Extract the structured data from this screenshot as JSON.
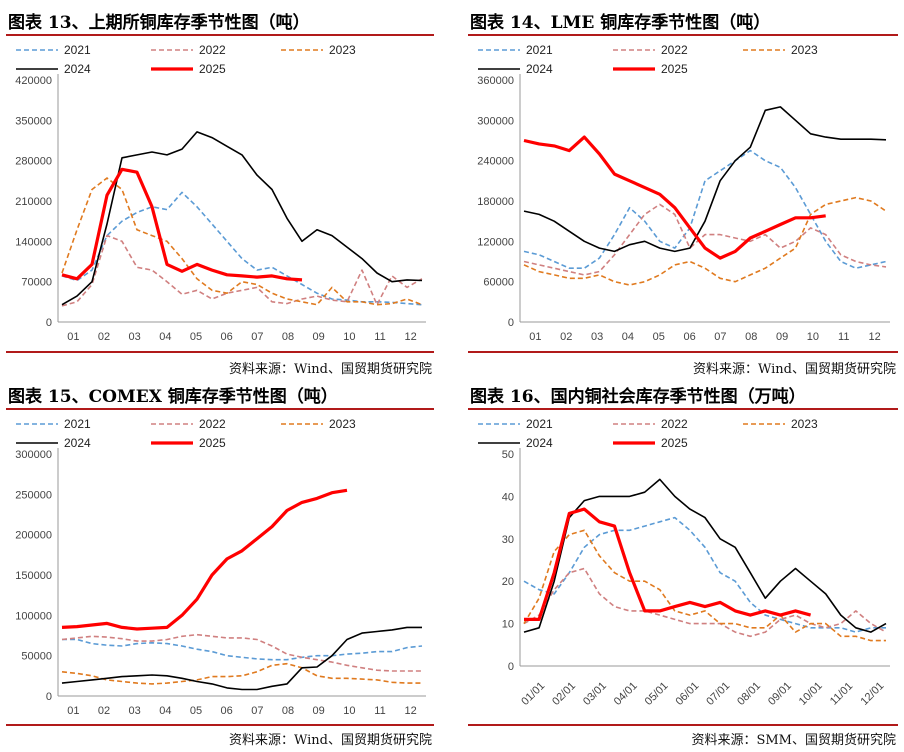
{
  "page": {
    "source_wind": "资料来源：Wind、国贸期货研究院",
    "source_smm": "资料来源：SMM、国贸期货研究院"
  },
  "colors": {
    "2021": "#5b9bd5",
    "2022": "#d08080",
    "2023": "#e07a1f",
    "2024": "#000000",
    "2025": "#ff0000",
    "title_rule": "#b11a1a"
  },
  "chart_data": [
    {
      "id": "shfe",
      "type": "line",
      "title": "图表 13、上期所铜库存季节性图（吨）",
      "source_key": "source_wind",
      "x_labels": [
        "01",
        "02",
        "03",
        "04",
        "05",
        "06",
        "07",
        "08",
        "09",
        "10",
        "11",
        "12"
      ],
      "ylim": [
        0,
        420000
      ],
      "yticks": [
        0,
        70000,
        140000,
        210000,
        280000,
        350000,
        420000
      ],
      "legend_order": [
        "2021",
        "2022",
        "2023",
        "2024",
        "2025"
      ],
      "series": [
        {
          "name": "2021",
          "values": [
            80000,
            72000,
            90000,
            150000,
            175000,
            190000,
            200000,
            195000,
            225000,
            200000,
            170000,
            140000,
            110000,
            90000,
            95000,
            80000,
            65000,
            50000,
            40000,
            38000,
            35000,
            35000,
            34000,
            32000,
            30000
          ]
        },
        {
          "name": "2022",
          "values": [
            28000,
            35000,
            65000,
            150000,
            140000,
            95000,
            90000,
            70000,
            48000,
            55000,
            40000,
            50000,
            55000,
            60000,
            35000,
            32000,
            40000,
            45000,
            38000,
            35000,
            90000,
            30000,
            80000,
            60000,
            75000
          ]
        },
        {
          "name": "2023",
          "values": [
            85000,
            160000,
            230000,
            250000,
            230000,
            160000,
            150000,
            140000,
            110000,
            75000,
            55000,
            50000,
            70000,
            65000,
            50000,
            40000,
            35000,
            30000,
            60000,
            35000,
            35000,
            30000,
            32000,
            40000,
            30000
          ]
        },
        {
          "name": "2024",
          "values": [
            30000,
            45000,
            70000,
            170000,
            285000,
            290000,
            295000,
            290000,
            300000,
            330000,
            320000,
            305000,
            290000,
            255000,
            230000,
            180000,
            140000,
            160000,
            150000,
            130000,
            110000,
            85000,
            70000,
            73000,
            72000
          ]
        },
        {
          "name": "2025",
          "values": [
            82000,
            75000,
            100000,
            220000,
            265000,
            260000,
            200000,
            100000,
            88000,
            100000,
            90000,
            82000,
            80000,
            78000,
            80000,
            75000,
            73000
          ]
        }
      ]
    },
    {
      "id": "lme",
      "type": "line",
      "title": "图表 14、LME 铜库存季节性图（吨）",
      "source_key": "source_wind",
      "x_labels": [
        "01",
        "02",
        "03",
        "04",
        "05",
        "06",
        "07",
        "08",
        "09",
        "10",
        "11",
        "12"
      ],
      "ylim": [
        0,
        360000
      ],
      "yticks": [
        0,
        60000,
        120000,
        180000,
        240000,
        300000,
        360000
      ],
      "legend_order": [
        "2021",
        "2022",
        "2023",
        "2024",
        "2025"
      ],
      "series": [
        {
          "name": "2021",
          "values": [
            105000,
            100000,
            90000,
            80000,
            80000,
            95000,
            130000,
            170000,
            150000,
            120000,
            110000,
            140000,
            210000,
            225000,
            240000,
            255000,
            240000,
            230000,
            200000,
            160000,
            120000,
            90000,
            80000,
            85000,
            90000
          ]
        },
        {
          "name": "2022",
          "values": [
            90000,
            85000,
            80000,
            75000,
            70000,
            75000,
            100000,
            130000,
            160000,
            175000,
            160000,
            110000,
            130000,
            130000,
            125000,
            120000,
            130000,
            110000,
            120000,
            140000,
            130000,
            100000,
            90000,
            85000,
            82000
          ]
        },
        {
          "name": "2023",
          "values": [
            85000,
            75000,
            70000,
            65000,
            65000,
            70000,
            60000,
            55000,
            60000,
            70000,
            85000,
            90000,
            80000,
            65000,
            60000,
            70000,
            80000,
            95000,
            110000,
            160000,
            175000,
            180000,
            185000,
            180000,
            165000
          ]
        },
        {
          "name": "2024",
          "values": [
            165000,
            160000,
            150000,
            135000,
            120000,
            110000,
            105000,
            115000,
            120000,
            110000,
            105000,
            110000,
            150000,
            210000,
            240000,
            260000,
            315000,
            320000,
            300000,
            280000,
            275000,
            272000,
            272000,
            272000,
            271000
          ]
        },
        {
          "name": "2025",
          "values": [
            270000,
            265000,
            262000,
            255000,
            275000,
            250000,
            220000,
            210000,
            200000,
            190000,
            170000,
            140000,
            110000,
            95000,
            105000,
            125000,
            135000,
            145000,
            155000,
            155000,
            158000
          ]
        }
      ]
    },
    {
      "id": "comex",
      "type": "line",
      "title": "图表 15、COMEX 铜库存季节性图（吨）",
      "source_key": "source_wind",
      "x_labels": [
        "01",
        "02",
        "03",
        "04",
        "05",
        "06",
        "07",
        "08",
        "09",
        "10",
        "11",
        "12"
      ],
      "ylim": [
        0,
        300000
      ],
      "yticks": [
        0,
        50000,
        100000,
        150000,
        200000,
        250000,
        300000
      ],
      "legend_order": [
        "2021",
        "2022",
        "2023",
        "2024",
        "2025"
      ],
      "series": [
        {
          "name": "2021",
          "values": [
            70000,
            70000,
            65000,
            63000,
            62000,
            65000,
            66000,
            65000,
            62000,
            58000,
            55000,
            50000,
            48000,
            46000,
            45000,
            45000,
            48000,
            50000,
            50000,
            52000,
            53000,
            55000,
            55000,
            60000,
            62000
          ]
        },
        {
          "name": "2022",
          "values": [
            70000,
            72000,
            74000,
            73000,
            71000,
            68000,
            68000,
            70000,
            74000,
            76000,
            74000,
            72000,
            72000,
            70000,
            62000,
            52000,
            48000,
            45000,
            42000,
            38000,
            35000,
            32000,
            31000,
            31000,
            31000
          ]
        },
        {
          "name": "2023",
          "values": [
            30000,
            28000,
            25000,
            20000,
            18000,
            16000,
            15000,
            16000,
            18000,
            20000,
            24000,
            24000,
            25000,
            30000,
            38000,
            40000,
            35000,
            25000,
            22000,
            22000,
            21000,
            20000,
            17000,
            16000,
            16000
          ]
        },
        {
          "name": "2024",
          "values": [
            16000,
            18000,
            20000,
            22000,
            24000,
            25000,
            26000,
            25000,
            22000,
            18000,
            15000,
            10000,
            8000,
            8000,
            12000,
            15000,
            35000,
            36000,
            50000,
            70000,
            78000,
            80000,
            82000,
            85000,
            85000
          ]
        },
        {
          "name": "2025",
          "values": [
            85000,
            86000,
            88000,
            90000,
            85000,
            83000,
            84000,
            85000,
            100000,
            120000,
            150000,
            170000,
            180000,
            195000,
            210000,
            230000,
            240000,
            245000,
            252000,
            255000
          ]
        }
      ]
    },
    {
      "id": "domestic",
      "type": "line",
      "title": "图表 16、国内铜社会库存季节性图（万吨）",
      "source_key": "source_smm",
      "x_labels": [
        "01/01",
        "02/01",
        "03/01",
        "04/01",
        "05/01",
        "06/01",
        "07/01",
        "08/01",
        "09/01",
        "10/01",
        "11/01",
        "12/01"
      ],
      "ylim": [
        0,
        50
      ],
      "yticks": [
        0,
        10,
        20,
        30,
        40,
        50
      ],
      "legend_order": [
        "2021",
        "2022",
        "2023",
        "2024",
        "2025"
      ],
      "series": [
        {
          "name": "2021",
          "values": [
            20,
            18,
            17,
            22,
            28,
            31,
            32,
            32,
            33,
            34,
            35,
            32,
            28,
            22,
            20,
            15,
            12,
            11,
            10,
            9,
            9,
            9,
            8,
            9,
            9
          ]
        },
        {
          "name": "2022",
          "values": [
            10,
            12,
            18,
            22,
            23,
            17,
            14,
            13,
            13,
            12,
            11,
            10,
            10,
            10,
            8,
            7,
            8,
            11,
            12,
            10,
            9,
            10,
            13,
            10,
            8
          ]
        },
        {
          "name": "2023",
          "values": [
            10,
            16,
            27,
            31,
            32,
            26,
            22,
            20,
            20,
            18,
            13,
            12,
            13,
            10,
            10,
            9,
            9,
            12,
            8,
            10,
            10,
            7,
            7,
            6,
            6
          ]
        },
        {
          "name": "2024",
          "values": [
            8,
            9,
            20,
            35,
            39,
            40,
            40,
            40,
            41,
            44,
            40,
            37,
            35,
            30,
            28,
            22,
            16,
            20,
            23,
            20,
            17,
            12,
            9,
            8,
            10
          ]
        },
        {
          "name": "2025",
          "values": [
            11,
            11,
            22,
            36,
            37,
            34,
            33,
            22,
            13,
            13,
            14,
            15,
            14,
            15,
            13,
            12,
            13,
            12,
            13,
            12
          ]
        }
      ]
    }
  ]
}
